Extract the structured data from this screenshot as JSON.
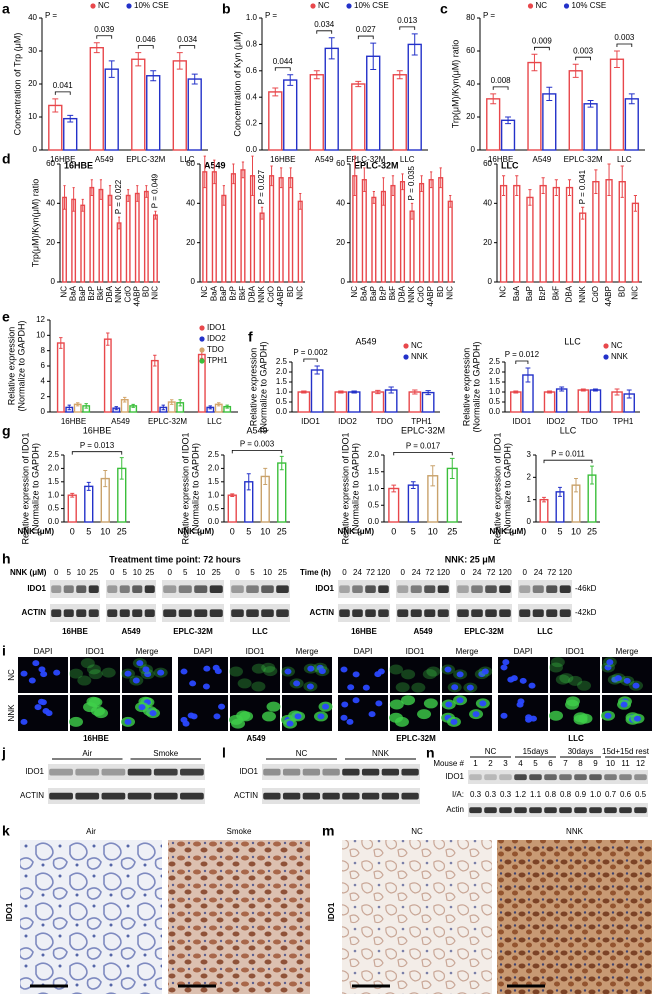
{
  "panels": [
    "a",
    "b",
    "c",
    "d",
    "e",
    "f",
    "g",
    "h",
    "i",
    "j",
    "k",
    "l",
    "m",
    "n"
  ],
  "chart_data": [
    {
      "type": "bar",
      "ylabel": [
        "Concentration of Trp (μM)"
      ],
      "categories": [
        "16HBE",
        "A549",
        "EPLC-32M",
        "LLC"
      ],
      "legend": "top",
      "series": [
        {
          "name": "NC",
          "color": "#e8474b",
          "values": [
            13.5,
            31,
            27.5,
            27
          ],
          "errors": [
            2,
            1.5,
            2,
            2.5
          ]
        },
        {
          "name": "10% CSE",
          "color": "#2331c9",
          "values": [
            9.5,
            24.5,
            22.5,
            21.5
          ],
          "errors": [
            1,
            2.5,
            1.5,
            1.5
          ]
        }
      ],
      "ylim": [
        0,
        40
      ],
      "yticks": [
        0,
        10,
        20,
        30,
        40
      ],
      "p_prefix": "P =",
      "p_values": [
        "0.041",
        "0.039",
        "0.046",
        "0.034"
      ]
    },
    {
      "type": "bar",
      "ylabel": [
        "Concentration of Kyn (μM)"
      ],
      "categories": [
        "16HBE",
        "A549",
        "EPLC-32M",
        "LLC"
      ],
      "legend": "top",
      "series": [
        {
          "name": "NC",
          "color": "#e8474b",
          "values": [
            0.44,
            0.57,
            0.5,
            0.57
          ],
          "errors": [
            0.03,
            0.03,
            0.02,
            0.03
          ]
        },
        {
          "name": "10% CSE",
          "color": "#2331c9",
          "values": [
            0.53,
            0.77,
            0.71,
            0.8
          ],
          "errors": [
            0.04,
            0.08,
            0.1,
            0.08
          ]
        }
      ],
      "ylim": [
        0,
        1
      ],
      "yticks": [
        {
          "value": 0,
          "label": "0.0"
        },
        0.2,
        0.4,
        0.6,
        0.8,
        {
          "value": 1,
          "label": "1.0"
        }
      ],
      "p_prefix": "P =",
      "p_values": [
        "0.044",
        "0.034",
        "0.027",
        "0.013"
      ]
    },
    {
      "type": "bar",
      "ylabel": [
        "Trp(μM)/Kyn(μM) ratio"
      ],
      "categories": [
        "16HBE",
        "A549",
        "EPLC-32M",
        "LLC"
      ],
      "legend": "top",
      "series": [
        {
          "name": "NC",
          "color": "#e8474b",
          "values": [
            31,
            53,
            48,
            55
          ],
          "errors": [
            3,
            5,
            4,
            5
          ]
        },
        {
          "name": "10% CSE",
          "color": "#2331c9",
          "values": [
            18,
            34,
            28,
            31
          ],
          "errors": [
            2,
            4,
            2,
            3
          ]
        }
      ],
      "ylim": [
        0,
        80
      ],
      "yticks": [
        0,
        20,
        40,
        60,
        80
      ],
      "p_prefix": "P =",
      "p_values": [
        "0.008",
        "0.009",
        "0.003",
        "0.003"
      ]
    },
    {
      "type": "bar",
      "title": "16HBE",
      "ylabel": [
        "Trp(μM)/Kyn(μM) ratio"
      ],
      "categories": [
        "NC",
        "BaA",
        "BaP",
        "BzP",
        "BkF",
        "DBA",
        "NNK",
        "CdO",
        "4ABP",
        "BD",
        "NIC"
      ],
      "series": [
        {
          "color": "#e8474b",
          "values": [
            43,
            42,
            39,
            48,
            47,
            44,
            30,
            44,
            45,
            46,
            34
          ],
          "errors": [
            6,
            6,
            3,
            4,
            5,
            5,
            3,
            3,
            4,
            3,
            2
          ]
        }
      ],
      "ylim": [
        0,
        60
      ],
      "yticks": [
        0,
        20,
        40,
        60
      ],
      "p_values": [
        null,
        null,
        null,
        null,
        null,
        null,
        "P = 0.022",
        null,
        null,
        null,
        "P = 0.049"
      ]
    },
    {
      "type": "bar",
      "title": "A549",
      "categories": [
        "NC",
        "BaA",
        "BaP",
        "BzP",
        "BkF",
        "DBA",
        "NNK",
        "CdO",
        "4ABP",
        "BD",
        "NIC"
      ],
      "series": [
        {
          "color": "#e8474b",
          "values": [
            56,
            56,
            44,
            55,
            57,
            54,
            35,
            54,
            53,
            53,
            41
          ],
          "errors": [
            8,
            6,
            5,
            5,
            4,
            10,
            3,
            5,
            5,
            5,
            4
          ]
        }
      ],
      "ylim": [
        0,
        60
      ],
      "yticks": [
        0,
        20,
        40,
        60
      ],
      "p_values": [
        null,
        null,
        null,
        null,
        null,
        null,
        "P = 0.027",
        null,
        null,
        null,
        null
      ]
    },
    {
      "type": "bar",
      "title": "EPLC-32M",
      "categories": [
        "NC",
        "BaA",
        "BaP",
        "BzP",
        "BkF",
        "DBA",
        "NNK",
        "CdO",
        "4ABP",
        "BD",
        "NIC"
      ],
      "series": [
        {
          "color": "#e8474b",
          "values": [
            54,
            52,
            43,
            46,
            49,
            51,
            36,
            50,
            52,
            53,
            41
          ],
          "errors": [
            10,
            6,
            3,
            7,
            5,
            4,
            4,
            4,
            4,
            5,
            3
          ]
        }
      ],
      "ylim": [
        0,
        60
      ],
      "yticks": [
        0,
        20,
        40,
        60
      ],
      "p_values": [
        null,
        null,
        null,
        null,
        null,
        null,
        "P = 0.035",
        null,
        null,
        null,
        null
      ]
    },
    {
      "type": "bar",
      "title": "LLC",
      "categories": [
        "NC",
        "BaA",
        "BaP",
        "BzP",
        "BkF",
        "DBA",
        "NNK",
        "CdO",
        "4ABP",
        "BD",
        "NIC"
      ],
      "series": [
        {
          "color": "#e8474b",
          "values": [
            49,
            49,
            43,
            49,
            48,
            48,
            35,
            51,
            52,
            51,
            40
          ],
          "errors": [
            5,
            5,
            4,
            4,
            4,
            4,
            3,
            6,
            8,
            8,
            4
          ]
        }
      ],
      "ylim": [
        0,
        60
      ],
      "yticks": [
        0,
        20,
        40,
        60
      ],
      "p_values": [
        null,
        null,
        null,
        null,
        null,
        null,
        "P = 0.041",
        null,
        null,
        null,
        null
      ]
    },
    {
      "type": "bar",
      "ylabel": [
        "Relative expression",
        "(Normalize to GAPDH)"
      ],
      "categories": [
        "16HBE",
        "A549",
        "EPLC-32M",
        "LLC"
      ],
      "legend": "right",
      "series": [
        {
          "name": "IDO1",
          "color": "#e8474b",
          "values": [
            9,
            9.5,
            6.7,
            7.5
          ],
          "errors": [
            0.7,
            0.8,
            0.7,
            0.5
          ]
        },
        {
          "name": "IDO2",
          "color": "#2331c9",
          "values": [
            0.6,
            0.5,
            0.6,
            0.6
          ],
          "errors": [
            0.3,
            0.2,
            0.3,
            0.2
          ]
        },
        {
          "name": "TDO",
          "color": "#d4a56a",
          "values": [
            1,
            1.6,
            1.3,
            1
          ],
          "errors": [
            0.2,
            0.3,
            0.3,
            0.2
          ]
        },
        {
          "name": "TPH1",
          "color": "#3bbf3b",
          "values": [
            0.8,
            0.8,
            1.2,
            0.7
          ],
          "errors": [
            0.3,
            0.2,
            0.4,
            0.2
          ]
        }
      ],
      "ylim": [
        0,
        12
      ],
      "yticks": [
        0,
        2,
        4,
        6,
        8,
        10,
        12
      ]
    },
    {
      "type": "bar",
      "title": "A549",
      "ylabel": [
        "Relative expression",
        "(Normalize to GAPDH)"
      ],
      "categories": [
        "IDO1",
        "IDO2",
        "TDO",
        "TPH1"
      ],
      "legend": "top-right",
      "series": [
        {
          "name": "NC",
          "color": "#e8474b",
          "values": [
            1,
            1,
            1,
            1
          ],
          "errors": [
            0.05,
            0.05,
            0.08,
            0.1
          ]
        },
        {
          "name": "NNK",
          "color": "#2331c9",
          "values": [
            2.1,
            1,
            1.1,
            0.97
          ],
          "errors": [
            0.2,
            0.05,
            0.15,
            0.1
          ]
        }
      ],
      "ylim": [
        0,
        2.5
      ],
      "yticks": [
        {
          "value": 0,
          "label": "0.0"
        },
        0.5,
        {
          "value": 1,
          "label": "1.0"
        },
        1.5,
        {
          "value": 2,
          "label": "2.0"
        },
        2.5
      ],
      "p_values": [
        "P = 0.002",
        null,
        null,
        null
      ]
    },
    {
      "type": "bar",
      "title": "LLC",
      "ylabel": [
        "Relative expression",
        "(Normalize to GAPDH)"
      ],
      "categories": [
        "IDO1",
        "IDO2",
        "TDO",
        "TPH1"
      ],
      "legend": "top-right",
      "series": [
        {
          "name": "NC",
          "color": "#e8474b",
          "values": [
            1,
            1,
            1.1,
            1
          ],
          "errors": [
            0.05,
            0.05,
            0.05,
            0.15
          ]
        },
        {
          "name": "NNK",
          "color": "#2331c9",
          "values": [
            1.85,
            1.15,
            1.1,
            0.9
          ],
          "errors": [
            0.35,
            0.1,
            0.05,
            0.2
          ]
        }
      ],
      "ylim": [
        0,
        2.5
      ],
      "yticks": [
        {
          "value": 0,
          "label": "0.0"
        },
        0.5,
        {
          "value": 1,
          "label": "1.0"
        },
        1.5,
        {
          "value": 2,
          "label": "2.0"
        },
        2.5
      ],
      "p_values": [
        "P = 0.012",
        null,
        null,
        null
      ]
    },
    {
      "type": "bar",
      "title": "16HBE",
      "ylabel": [
        "Relative expression of IDO1",
        "(Normalize to GAPDH)"
      ],
      "xlabel": "NNK (μM)",
      "categories": [
        "0",
        "5",
        "10",
        "25"
      ],
      "series": [
        {
          "colors": [
            "#e8474b",
            "#2331c9",
            "#c9a26b",
            "#3bbf3b"
          ],
          "values": [
            1,
            1.33,
            1.62,
            2
          ],
          "errors": [
            0.07,
            0.15,
            0.3,
            0.4
          ]
        }
      ],
      "ylim": [
        0,
        2.5
      ],
      "yticks": [
        {
          "value": 0,
          "label": "0.0"
        },
        0.5,
        {
          "value": 1,
          "label": "1.0"
        },
        1.5,
        {
          "value": 2,
          "label": "2.0"
        },
        2.5
      ],
      "p_value": "P = 0.013"
    },
    {
      "type": "bar",
      "title": "A549",
      "ylabel": [
        "Relative expression of IDO1",
        "(Normalize to GAPDH)"
      ],
      "xlabel": "NNK (μM)",
      "categories": [
        "0",
        "5",
        "10",
        "25"
      ],
      "series": [
        {
          "colors": [
            "#e8474b",
            "#2331c9",
            "#c9a26b",
            "#3bbf3b"
          ],
          "values": [
            1,
            1.5,
            1.7,
            2.2
          ],
          "errors": [
            0.05,
            0.3,
            0.3,
            0.25
          ]
        }
      ],
      "ylim": [
        0,
        2.5
      ],
      "yticks": [
        {
          "value": 0,
          "label": "0.0"
        },
        0.5,
        {
          "value": 1,
          "label": "1.0"
        },
        1.5,
        {
          "value": 2,
          "label": "2.0"
        },
        2.5
      ],
      "p_value": "P = 0.003"
    },
    {
      "type": "bar",
      "title": "EPLC-32M",
      "ylabel": [
        "Relative expression of IDO1",
        "(Normalize to GAPDH)"
      ],
      "xlabel": "NNK (μM)",
      "categories": [
        "0",
        "5",
        "10",
        "25"
      ],
      "series": [
        {
          "colors": [
            "#e8474b",
            "#2331c9",
            "#c9a26b",
            "#3bbf3b"
          ],
          "values": [
            1,
            1.1,
            1.38,
            1.6
          ],
          "errors": [
            0.1,
            0.1,
            0.3,
            0.3
          ]
        }
      ],
      "ylim": [
        0,
        2
      ],
      "yticks": [
        {
          "value": 0,
          "label": "0.0"
        },
        0.5,
        {
          "value": 1,
          "label": "1.0"
        },
        1.5,
        {
          "value": 2,
          "label": "2.0"
        }
      ],
      "p_value": "P = 0.017"
    },
    {
      "type": "bar",
      "title": "LLC",
      "ylabel": [
        "Relative expression of IDO1",
        "(Normalize to GAPDH)"
      ],
      "xlabel": "NNK (μM)",
      "categories": [
        "0",
        "5",
        "10",
        "25"
      ],
      "series": [
        {
          "colors": [
            "#e8474b",
            "#2331c9",
            "#c9a26b",
            "#3bbf3b"
          ],
          "values": [
            1,
            1.35,
            1.65,
            2.1
          ],
          "errors": [
            0.1,
            0.2,
            0.3,
            0.4
          ]
        }
      ],
      "ylim": [
        0,
        3
      ],
      "yticks": [
        0,
        1,
        2,
        3
      ],
      "p_value": "P = 0.011"
    }
  ],
  "panel_h": {
    "left_title": "Treatment time point: 72 hours",
    "left_header": "NNK (μM)",
    "left_lanes": [
      "0",
      "5",
      "10",
      "25"
    ],
    "right_title": "NNK: 25 μM",
    "right_header": "Time (h)",
    "right_lanes": [
      "0",
      "24",
      "72",
      "120"
    ],
    "rows": [
      "IDO1",
      "ACTIN"
    ],
    "cells": [
      "16HBE",
      "A549",
      "EPLC-32M",
      "LLC"
    ],
    "markers": [
      "-46kD",
      "-42kD"
    ]
  },
  "panel_i": {
    "channels": [
      "DAPI",
      "IDO1",
      "Merge"
    ],
    "rows": [
      "NC",
      "NNK"
    ],
    "cells": [
      "16HBE",
      "A549",
      "EPLC-32M",
      "LLC"
    ]
  },
  "panel_j": {
    "groups": [
      "Air",
      "Smoke"
    ],
    "rows": [
      "IDO1",
      "ACTIN"
    ]
  },
  "panel_l": {
    "groups": [
      "NC",
      "NNK"
    ],
    "rows": [
      "IDO1",
      "ACTIN"
    ]
  },
  "panel_n": {
    "header": "Mouse #",
    "mice": [
      "1",
      "2",
      "3",
      "4",
      "5",
      "6",
      "7",
      "8",
      "9",
      "10",
      "11",
      "12"
    ],
    "groups": [
      "NC",
      "15days",
      "30days",
      "15d+15d rest"
    ],
    "rows": [
      "IDO1",
      "I/A:",
      "Actin"
    ],
    "ratios": [
      "0.3",
      "0.3",
      "0.3",
      "1.2",
      "1.1",
      "0.8",
      "0.8",
      "0.9",
      "1.0",
      "0.7",
      "0.6",
      "0.5"
    ]
  },
  "panel_k": {
    "label": "IDO1",
    "groups": [
      "Air",
      "Smoke"
    ]
  },
  "panel_m": {
    "label": "IDO1",
    "groups": [
      "NC",
      "NNK"
    ]
  }
}
